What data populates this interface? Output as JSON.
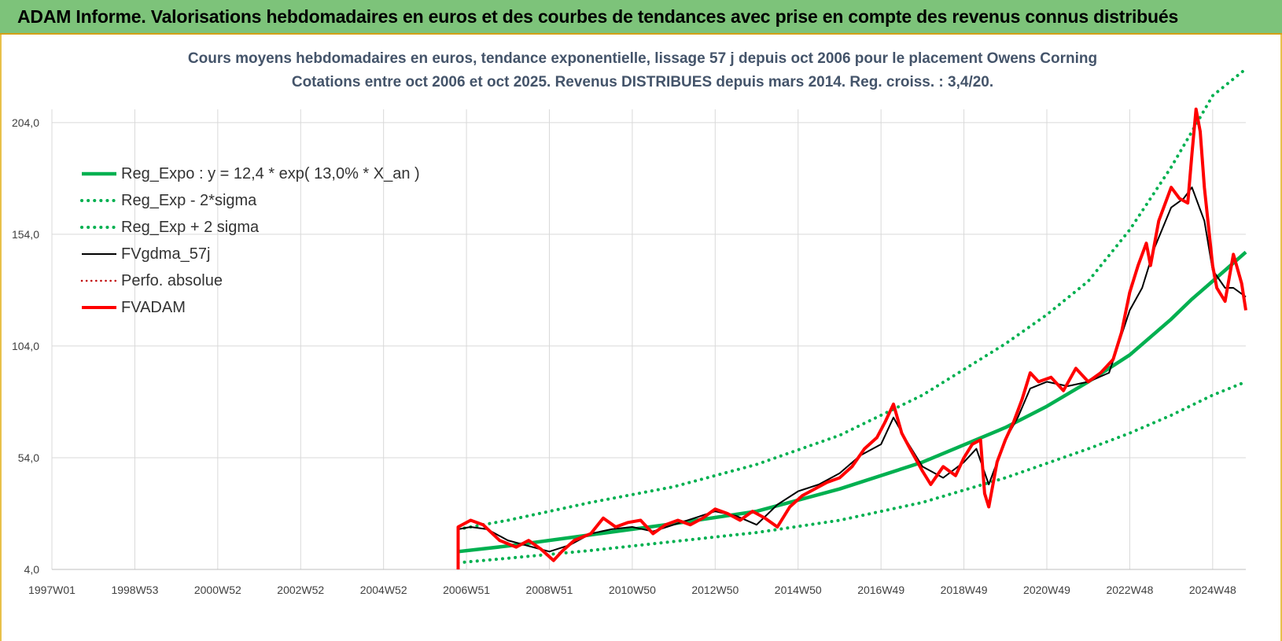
{
  "banner": {
    "title": "ADAM Informe. Valorisations hebdomadaires en euros et des courbes de tendances avec prise en compte des revenus connus distribués"
  },
  "colors": {
    "banner_bg": "#7dc37a",
    "title_text": "#44546a",
    "reg_green": "#00b050",
    "fv_black": "#000000",
    "fvadam_red": "#ff0000",
    "perfo_red": "#c00000",
    "grid": "#d9d9d9"
  },
  "chart_data": {
    "type": "line",
    "title_line1": "Cours moyens hebdomadaires en euros, tendance exponentielle, lissage 57 j depuis oct 2006 pour le placement Owens Corning",
    "title_line2": "Cotations entre oct 2006 et oct 2025. Revenus DISTRIBUES depuis mars 2014. Reg. croiss. : 3,4/20.",
    "xlabel": "",
    "ylabel": "",
    "x_range": [
      1997.0,
      2025.8
    ],
    "ylim": [
      4.0,
      224.0
    ],
    "y_ticks": [
      "4,0",
      "54,0",
      "104,0",
      "154,0",
      "204,0"
    ],
    "y_tick_values": [
      4,
      54,
      104,
      154,
      204
    ],
    "x_ticks": [
      "1997W01",
      "1998W53",
      "2000W52",
      "2002W52",
      "2004W52",
      "2006W51",
      "2008W51",
      "2010W50",
      "2012W50",
      "2014W50",
      "2016W49",
      "2018W49",
      "2020W49",
      "2022W48",
      "2024W48"
    ],
    "x_tick_positions": [
      1997.0,
      1999.0,
      2001.0,
      2003.0,
      2005.0,
      2007.0,
      2009.0,
      2011.0,
      2013.0,
      2015.0,
      2017.0,
      2019.0,
      2021.0,
      2023.0,
      2025.0
    ],
    "grid": true,
    "legend_position": "top-left",
    "series": [
      {
        "name": "Reg_Expo : y = 12,4 * exp( 13,0% *  X_an )",
        "style": "solid-green",
        "x": [
          2006.8,
          2008,
          2010,
          2012,
          2014,
          2016,
          2018,
          2020,
          2021,
          2022,
          2023,
          2024,
          2024.5,
          2025,
          2025.8
        ],
        "y": [
          12,
          14.5,
          19.5,
          24.5,
          30,
          40,
          52,
          67.5,
          77,
          88,
          100,
          116,
          125,
          133,
          146
        ]
      },
      {
        "name": "Reg_Exp - 2*sigma",
        "style": "dotted-green",
        "x": [
          2006.8,
          2008,
          2010,
          2012,
          2014,
          2016,
          2018,
          2020,
          2021,
          2022,
          2023,
          2024,
          2025,
          2025.8
        ],
        "y": [
          7,
          9,
          12.5,
          16.5,
          20.5,
          26,
          34,
          45,
          51.5,
          58,
          65,
          73,
          82,
          88
        ]
      },
      {
        "name": "Reg_Exp + 2 sigma",
        "style": "dotted-green",
        "x": [
          2006.8,
          2008,
          2010,
          2012,
          2014,
          2016,
          2018,
          2020,
          2021,
          2022,
          2023,
          2024,
          2024.5,
          2025,
          2025.8
        ],
        "y": [
          22,
          26,
          34,
          41,
          51,
          64,
          82,
          105,
          118,
          133,
          156,
          184,
          200,
          216,
          228
        ]
      },
      {
        "name": "FVgdma_57j",
        "style": "solid-black",
        "x": [
          2006.8,
          2007.1,
          2007.5,
          2008,
          2008.6,
          2009,
          2009.5,
          2010,
          2010.5,
          2011,
          2011.5,
          2012,
          2012.5,
          2013,
          2013.5,
          2014,
          2014.5,
          2015,
          2015.5,
          2016,
          2016.5,
          2017,
          2017.3,
          2017.6,
          2018,
          2018.5,
          2019,
          2019.3,
          2019.6,
          2020,
          2020.3,
          2020.6,
          2021,
          2021.5,
          2022,
          2022.5,
          2023,
          2023.3,
          2023.6,
          2024,
          2024.3,
          2024.5,
          2024.8,
          2025,
          2025.3,
          2025.5,
          2025.8
        ],
        "y": [
          22,
          23,
          22,
          17,
          14,
          12,
          15,
          20,
          22,
          23,
          21,
          24,
          27,
          30,
          28,
          24,
          33,
          39,
          42,
          47,
          55,
          60,
          72,
          62,
          50,
          45,
          52,
          58,
          42,
          62,
          72,
          85,
          88,
          86,
          88,
          92,
          120,
          130,
          148,
          166,
          170,
          175,
          160,
          138,
          130,
          130,
          126
        ]
      },
      {
        "name": "Perfo. absolue",
        "style": "dotted-red",
        "x": [],
        "y": []
      },
      {
        "name": "FVADAM",
        "style": "solid-red",
        "x": [
          2006.8,
          2006.8,
          2007.1,
          2007.4,
          2007.8,
          2008.2,
          2008.5,
          2008.8,
          2009.1,
          2009.3,
          2009.6,
          2010,
          2010.3,
          2010.6,
          2010.9,
          2011.2,
          2011.5,
          2011.8,
          2012.1,
          2012.4,
          2012.7,
          2013,
          2013.3,
          2013.6,
          2013.9,
          2014.2,
          2014.5,
          2014.8,
          2015.1,
          2015.4,
          2015.7,
          2016,
          2016.3,
          2016.6,
          2016.9,
          2017.1,
          2017.3,
          2017.5,
          2017.7,
          2018,
          2018.2,
          2018.5,
          2018.8,
          2019,
          2019.2,
          2019.4,
          2019.5,
          2019.6,
          2019.8,
          2020,
          2020.2,
          2020.4,
          2020.6,
          2020.8,
          2021.1,
          2021.4,
          2021.7,
          2022,
          2022.3,
          2022.6,
          2022.8,
          2023,
          2023.2,
          2023.4,
          2023.5,
          2023.7,
          2024,
          2024.2,
          2024.4,
          2024.5,
          2024.6,
          2024.7,
          2024.8,
          2025,
          2025.1,
          2025.3,
          2025.5,
          2025.7,
          2025.8
        ],
        "y": [
          4,
          23,
          26,
          24,
          17,
          14,
          17,
          13,
          8,
          12,
          17,
          20,
          27,
          23,
          25,
          26,
          20,
          24,
          26,
          24,
          27,
          31,
          29,
          26,
          30,
          27,
          23,
          32,
          37,
          40,
          43,
          45,
          50,
          58,
          63,
          70,
          78,
          65,
          58,
          48,
          42,
          50,
          46,
          54,
          60,
          62,
          38,
          32,
          52,
          62,
          70,
          80,
          92,
          88,
          90,
          84,
          94,
          88,
          92,
          98,
          110,
          128,
          140,
          150,
          140,
          160,
          175,
          170,
          168,
          190,
          210,
          200,
          175,
          140,
          130,
          124,
          145,
          132,
          120
        ]
      }
    ]
  }
}
